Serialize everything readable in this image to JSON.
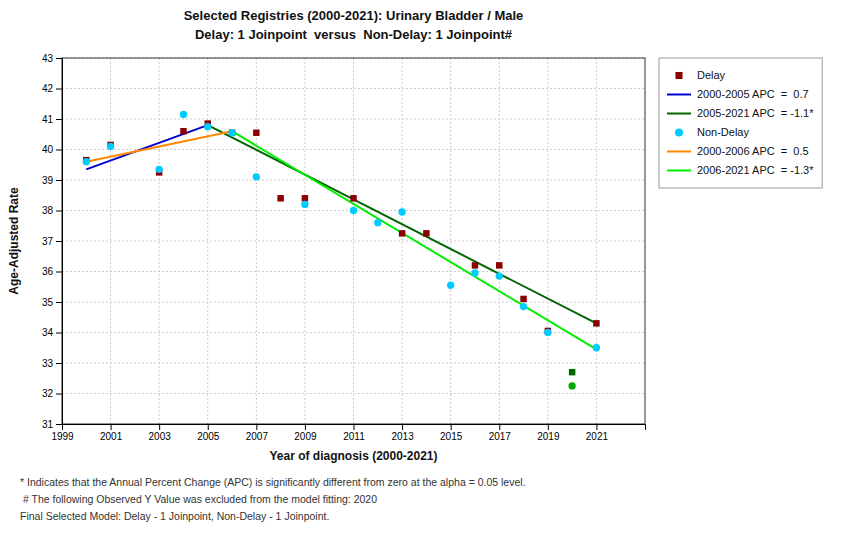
{
  "chart_data": {
    "type": "scatter",
    "title": "Selected Registries (2000-2021): Urinary Bladder / Male",
    "subtitle": "Delay: 1 Joinpoint  versus  Non-Delay: 1 Joinpoint#",
    "x_label": "Year of diagnosis (2000-2021)",
    "y_label": "Age-Adjusted Rate",
    "xlim": [
      1999,
      2023
    ],
    "ylim": [
      31,
      43
    ],
    "xticks": [
      1999,
      2001,
      2003,
      2005,
      2007,
      2009,
      2011,
      2013,
      2015,
      2017,
      2019,
      2021
    ],
    "yticks": [
      31,
      32,
      33,
      34,
      35,
      36,
      37,
      38,
      39,
      40,
      41,
      42,
      43
    ],
    "grid": true,
    "legend": "right",
    "series": [
      {
        "name": "Delay",
        "type": "scatter",
        "marker": "square",
        "color": "#8b0000",
        "x": [
          2000,
          2001,
          2003,
          2004,
          2005,
          2006,
          2007,
          2008,
          2009,
          2011,
          2013,
          2014,
          2016,
          2017,
          2018,
          2019,
          2021
        ],
        "values": [
          39.65,
          40.15,
          39.25,
          40.6,
          40.85,
          40.55,
          40.55,
          38.4,
          38.4,
          38.4,
          37.25,
          37.25,
          36.2,
          36.2,
          35.1,
          34.05,
          34.3
        ]
      },
      {
        "name": "2000-2005 APC  =  0.7",
        "type": "line",
        "color": "#0000cc",
        "x": [
          2000,
          2005
        ],
        "values": [
          39.35,
          40.8
        ]
      },
      {
        "name": "2005-2021 APC  = -1.1*",
        "type": "line",
        "color": "#006600",
        "x": [
          2005,
          2021
        ],
        "values": [
          40.8,
          34.3
        ]
      },
      {
        "name": "Non-Delay",
        "type": "scatter",
        "marker": "circle",
        "color": "#00ccff",
        "x": [
          2000,
          2001,
          2003,
          2004,
          2005,
          2006,
          2007,
          2009,
          2011,
          2012,
          2013,
          2015,
          2016,
          2017,
          2018,
          2019,
          2021
        ],
        "values": [
          39.6,
          40.1,
          39.35,
          41.15,
          40.75,
          40.55,
          39.1,
          38.2,
          38.0,
          37.6,
          37.95,
          35.55,
          35.95,
          35.85,
          34.85,
          34.0,
          33.5
        ]
      },
      {
        "name": "2000-2006 APC  =  0.5",
        "type": "line",
        "color": "#ff8800",
        "x": [
          2000,
          2006
        ],
        "values": [
          39.6,
          40.6
        ]
      },
      {
        "name": "2006-2021 APC  = -1.3*",
        "type": "line",
        "color": "#00ee00",
        "x": [
          2006,
          2021
        ],
        "values": [
          40.6,
          33.45
        ]
      },
      {
        "type": "scatter",
        "marker": "square",
        "color": "#006600",
        "x": [
          2020
        ],
        "values": [
          32.7
        ]
      },
      {
        "type": "scatter",
        "marker": "circle",
        "color": "#00aa00",
        "x": [
          2020
        ],
        "values": [
          32.25
        ]
      }
    ],
    "annotations": [
      "* Indicates that the Annual Percent Change (APC) is significantly different from zero at the alpha = 0.05 level.",
      " # The following Observed Y Value was excluded from the model fitting: 2020",
      "Final Selected Model: Delay - 1 Joinpoint, Non-Delay - 1 Joinpoint."
    ]
  }
}
